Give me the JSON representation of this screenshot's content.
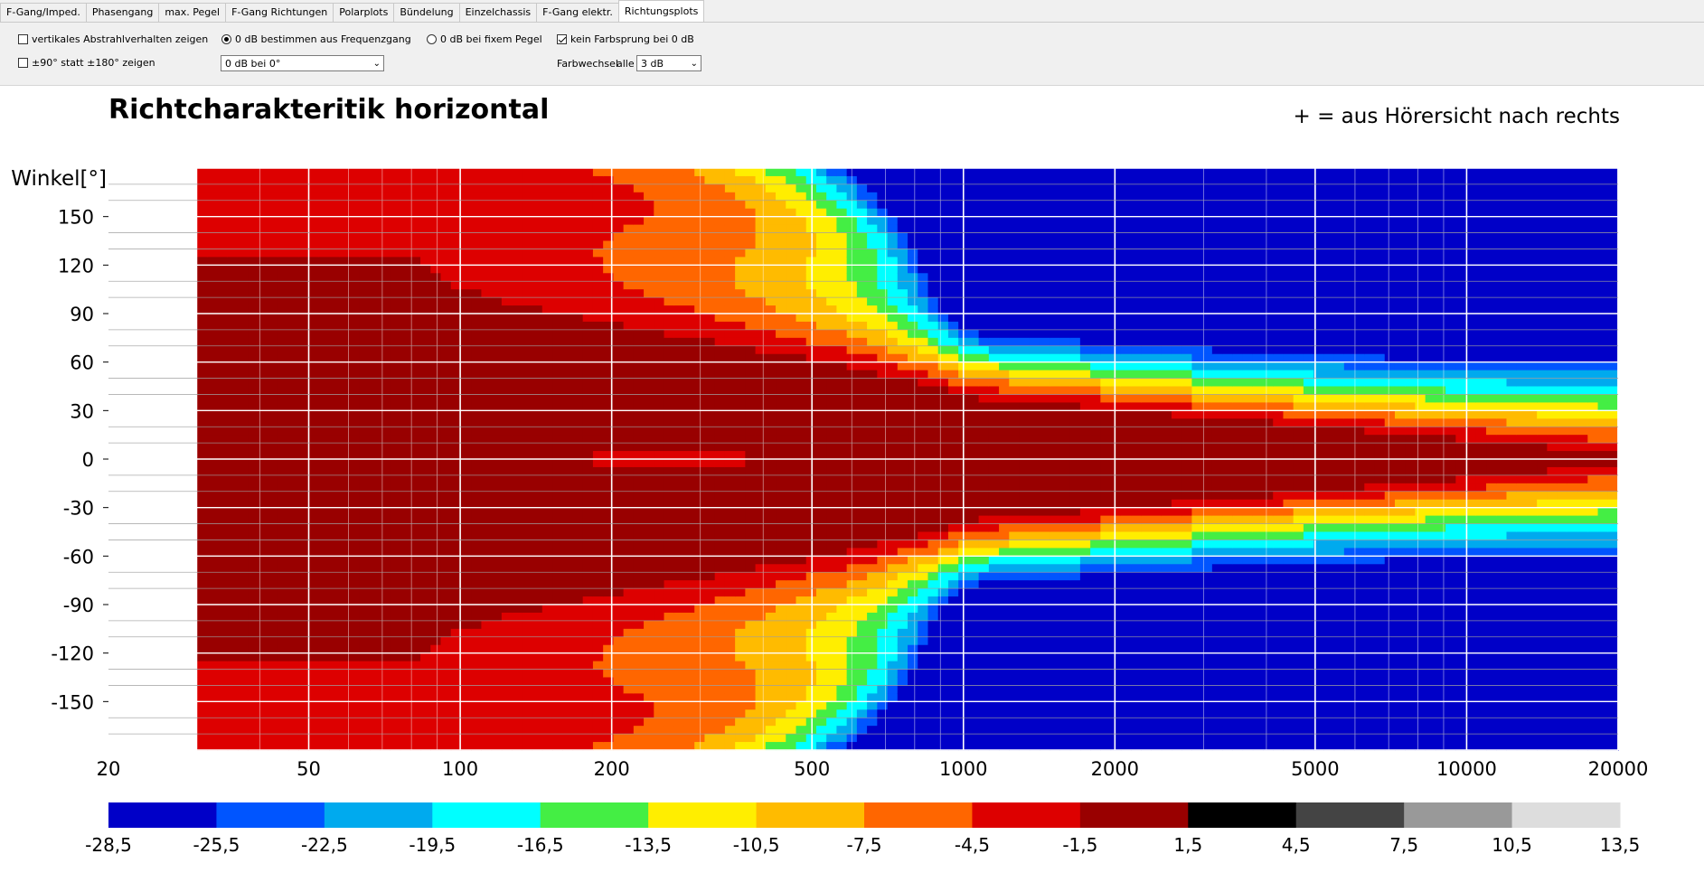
{
  "tabs": [
    {
      "label": "F-Gang/Imped.",
      "active": false
    },
    {
      "label": "Phasengang",
      "active": false
    },
    {
      "label": "max. Pegel",
      "active": false
    },
    {
      "label": "F-Gang Richtungen",
      "active": false
    },
    {
      "label": "Polarplots",
      "active": false
    },
    {
      "label": "Bündelung",
      "active": false
    },
    {
      "label": "Einzelchassis",
      "active": false
    },
    {
      "label": "F-Gang elektr.",
      "active": false
    },
    {
      "label": "Richtungsplots",
      "active": true
    }
  ],
  "options": {
    "vertical_label": "vertikales Abstrahlverhalten zeigen",
    "vertical_checked": false,
    "range90_label": "±90° statt ±180° zeigen",
    "range90_checked": false,
    "zero_freq_label": "0 dB bestimmen aus Frequenzgang",
    "zero_freq_selected": true,
    "zero_select_value": "0 dB bei 0°",
    "zero_fixed_label": "0 dB bei fixem Pegel",
    "zero_fixed_selected": false,
    "no_jump_label": "kein Farbsprung bei 0 dB",
    "no_jump_checked": true,
    "color_change_label": "Farbwechsel",
    "color_change_every": "alle",
    "color_change_value": "3 dB"
  },
  "chart_data": {
    "type": "heatmap",
    "title": "Richtcharakteritik horizontal",
    "note": "+ = aus Hörersicht nach rechts",
    "ylabel": "Winkel[°]",
    "xscale": "log",
    "xlim": [
      20,
      20000
    ],
    "ylim": [
      -180,
      180
    ],
    "x_ticks": [
      20,
      50,
      100,
      200,
      500,
      1000,
      2000,
      5000,
      10000,
      20000
    ],
    "x_tick_labels": [
      "20",
      "50",
      "100",
      "200",
      "500",
      "1000",
      "2000",
      "5000",
      "10000",
      "20000"
    ],
    "y_ticks": [
      150,
      120,
      90,
      60,
      30,
      0,
      -30,
      -60,
      -90,
      -120,
      -150
    ],
    "y_tick_labels": [
      "150",
      "120",
      "90",
      "60",
      "30",
      "0",
      "-30",
      "-60",
      "-90",
      "-120",
      "-150"
    ],
    "data_start_hz": 30,
    "grid": true,
    "colorbar": {
      "boundaries": [
        "-28,5",
        "-25,5",
        "-22,5",
        "-19,5",
        "-16,5",
        "-13,5",
        "-10,5",
        "-7,5",
        "-4,5",
        "-1,5",
        "1,5",
        "4,5",
        "7,5",
        "10,5",
        "13,5"
      ],
      "colors": [
        "#0000c8",
        "#0055ff",
        "#00aaee",
        "#00ffff",
        "#44ee44",
        "#ffee00",
        "#ffbb00",
        "#ff6600",
        "#dd0000",
        "#990000",
        "#000000",
        "#444444",
        "#999999",
        "#dddddd"
      ]
    }
  }
}
